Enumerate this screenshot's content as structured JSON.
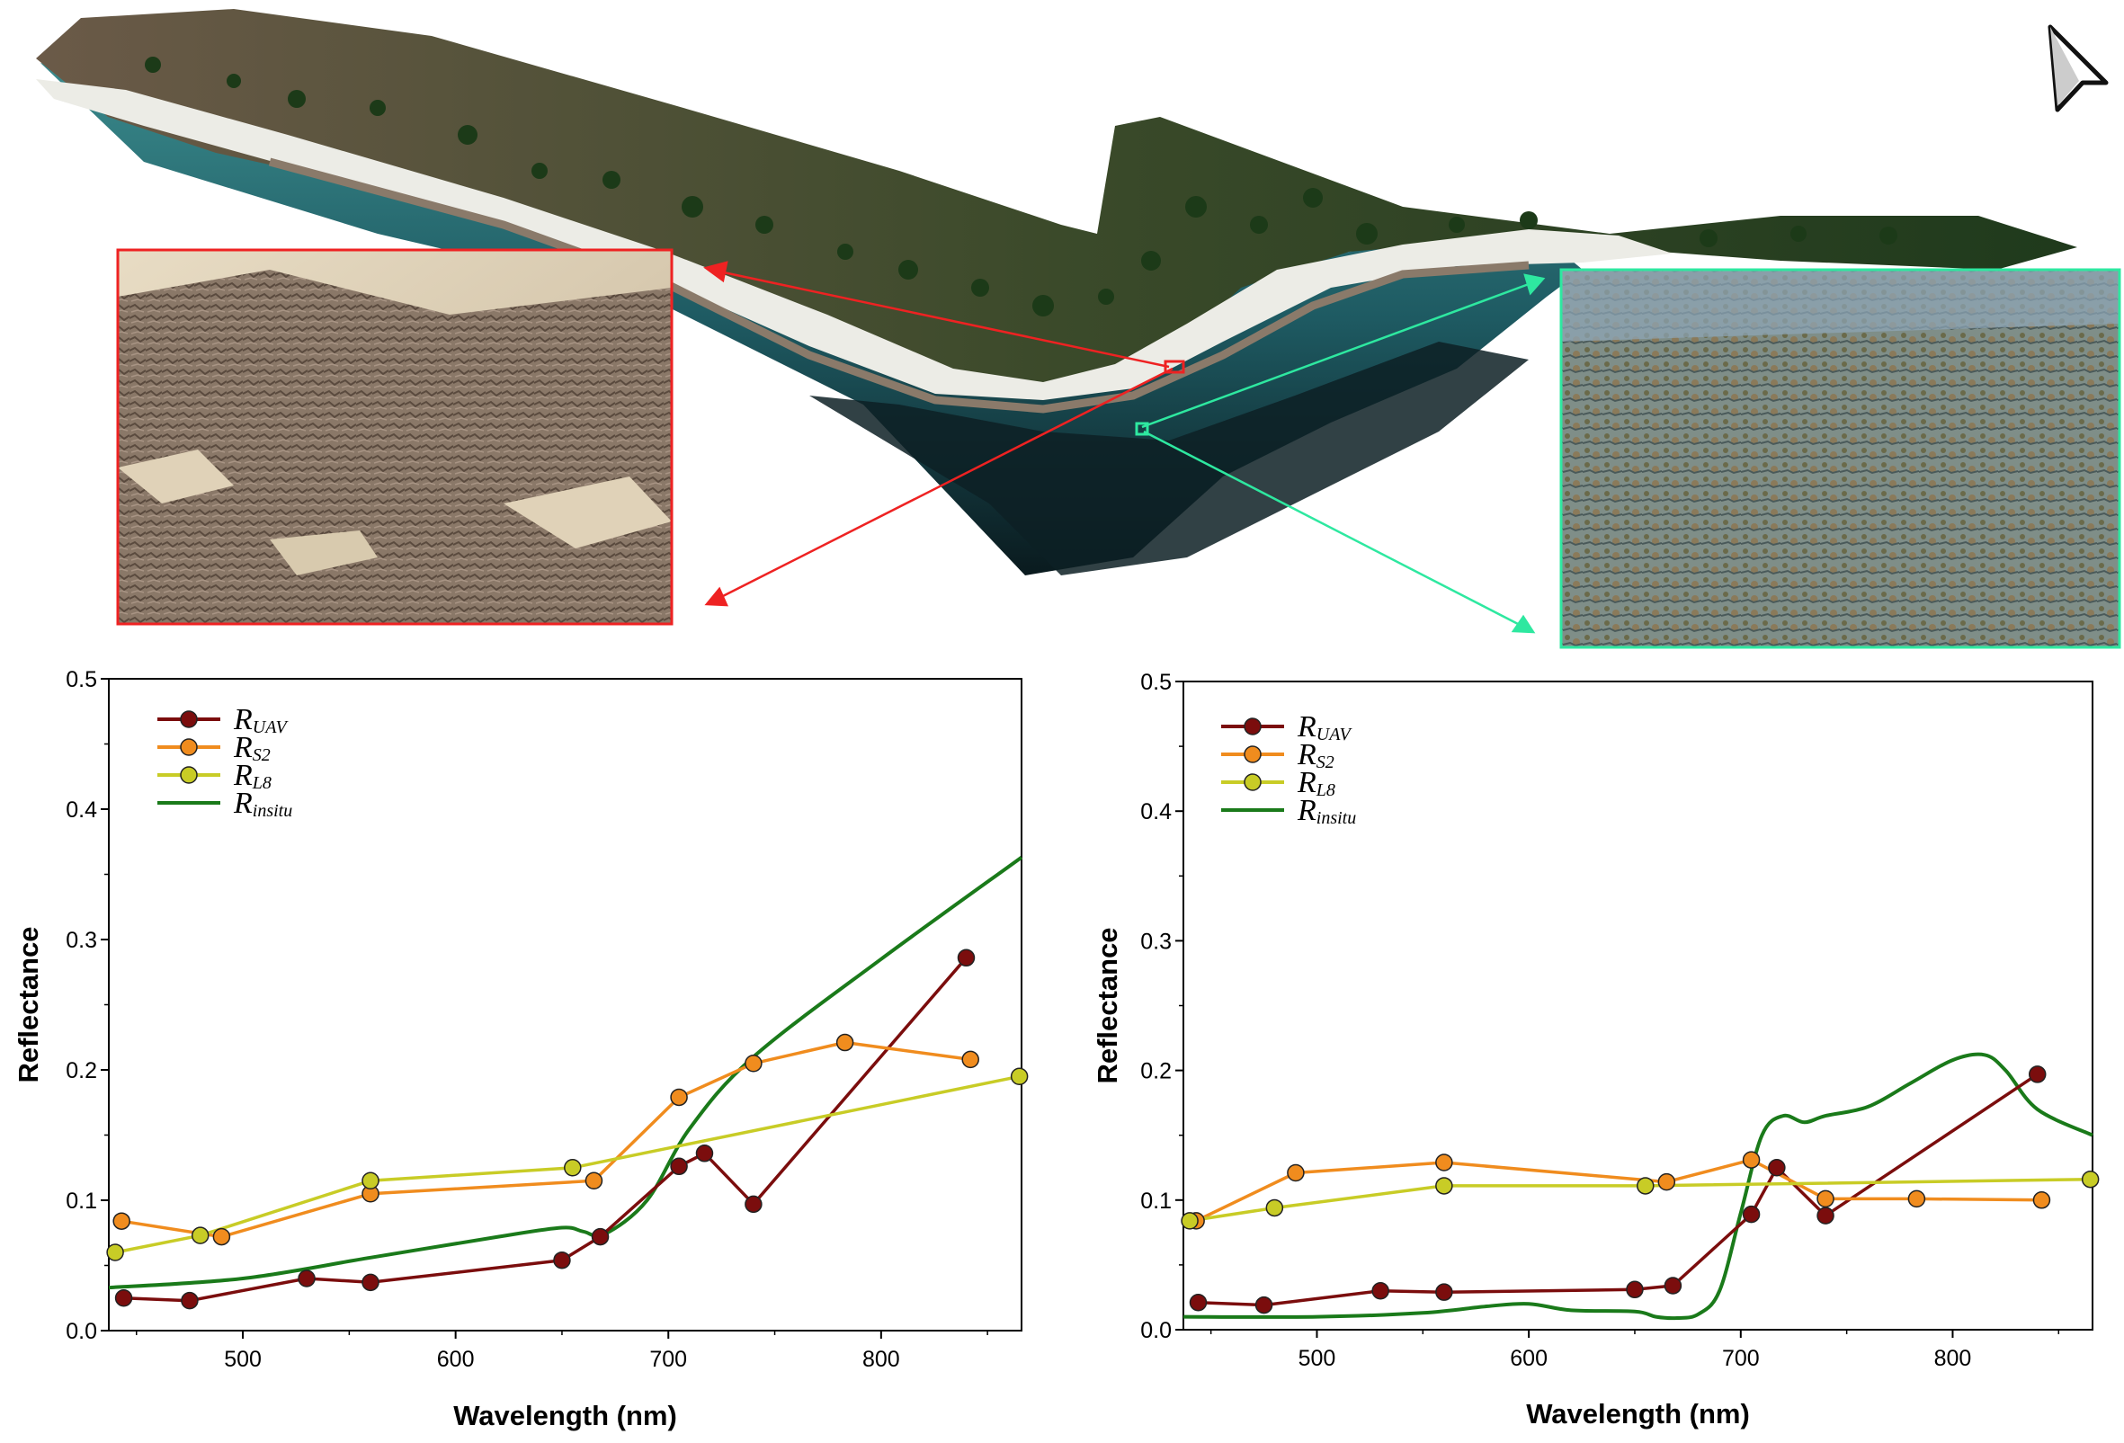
{
  "charts_common": {
    "xlabel": "Wavelength (nm)",
    "ylabel": "Reflectance",
    "xlim": [
      437,
      866
    ],
    "ylim": [
      0,
      0.5
    ],
    "xticks": [
      "500",
      "600",
      "700",
      "800"
    ],
    "yticks": [
      "0.0",
      "0.1",
      "0.2",
      "0.3",
      "0.4",
      "0.5"
    ],
    "legend": [
      {
        "symbol": "R",
        "sub": "UAV",
        "color": "#7b0d0d"
      },
      {
        "symbol": "R",
        "sub": "S2",
        "color": "#f08c1e"
      },
      {
        "symbol": "R",
        "sub": "L8",
        "color": "#c8cc26"
      },
      {
        "symbol": "R",
        "sub": "insitu",
        "color": "#1a7a1a"
      }
    ]
  },
  "chart_data": [
    {
      "type": "line",
      "xlabel": "Wavelength (nm)",
      "ylabel": "Reflectance",
      "xlim": [
        437,
        866
      ],
      "ylim": [
        0,
        0.5
      ],
      "grid": false,
      "legend_position": "top-left",
      "series": [
        {
          "name": "RUAV",
          "color": "#7b0d0d",
          "markers": true,
          "x": [
            444,
            475,
            530,
            560,
            650,
            668,
            705,
            717,
            740,
            840
          ],
          "y": [
            0.025,
            0.023,
            0.04,
            0.037,
            0.054,
            0.072,
            0.126,
            0.136,
            0.097,
            0.286
          ]
        },
        {
          "name": "RS2",
          "color": "#f08c1e",
          "markers": true,
          "x": [
            443,
            490,
            560,
            665,
            705,
            740,
            783,
            842
          ],
          "y": [
            0.084,
            0.072,
            0.105,
            0.115,
            0.179,
            0.205,
            0.221,
            0.208
          ]
        },
        {
          "name": "RL8",
          "color": "#c8cc26",
          "markers": true,
          "x": [
            440,
            480,
            560,
            655,
            865
          ],
          "y": [
            0.06,
            0.073,
            0.115,
            0.125,
            0.195
          ]
        },
        {
          "name": "Rinsitu",
          "color": "#1a7a1a",
          "markers": false,
          "x": [
            437,
            500,
            560,
            620,
            650,
            660,
            670,
            690,
            710,
            740,
            800,
            866
          ],
          "y": [
            0.033,
            0.04,
            0.056,
            0.072,
            0.079,
            0.076,
            0.074,
            0.1,
            0.155,
            0.21,
            0.285,
            0.363
          ]
        }
      ]
    },
    {
      "type": "line",
      "xlabel": "Wavelength (nm)",
      "ylabel": "Reflectance",
      "xlim": [
        437,
        866
      ],
      "ylim": [
        0,
        0.5
      ],
      "grid": false,
      "legend_position": "top-left",
      "series": [
        {
          "name": "RUAV",
          "color": "#7b0d0d",
          "markers": true,
          "x": [
            444,
            475,
            530,
            560,
            650,
            668,
            705,
            717,
            740,
            840
          ],
          "y": [
            0.021,
            0.019,
            0.03,
            0.029,
            0.031,
            0.034,
            0.089,
            0.125,
            0.088,
            0.197
          ]
        },
        {
          "name": "RS2",
          "color": "#f08c1e",
          "markers": true,
          "x": [
            443,
            490,
            560,
            665,
            705,
            740,
            783,
            842
          ],
          "y": [
            0.084,
            0.121,
            0.129,
            0.114,
            0.131,
            0.101,
            0.101,
            0.1
          ]
        },
        {
          "name": "RL8",
          "color": "#c8cc26",
          "markers": true,
          "x": [
            440,
            480,
            560,
            655,
            865
          ],
          "y": [
            0.084,
            0.094,
            0.111,
            0.111,
            0.116
          ]
        },
        {
          "name": "Rinsitu",
          "color": "#1a7a1a",
          "markers": false,
          "x": [
            437,
            500,
            550,
            580,
            600,
            620,
            650,
            660,
            670,
            680,
            690,
            700,
            710,
            720,
            730,
            740,
            760,
            780,
            800,
            815,
            825,
            840,
            866
          ],
          "y": [
            0.01,
            0.01,
            0.013,
            0.018,
            0.02,
            0.015,
            0.014,
            0.01,
            0.009,
            0.012,
            0.03,
            0.09,
            0.15,
            0.165,
            0.16,
            0.165,
            0.172,
            0.19,
            0.208,
            0.212,
            0.2,
            0.17,
            0.15
          ]
        }
      ]
    }
  ],
  "icons": {
    "north_arrow": "navigation-arrow-icon"
  },
  "colors": {
    "red_inset": "#ee2222",
    "green_inset": "#2ee8a0"
  }
}
